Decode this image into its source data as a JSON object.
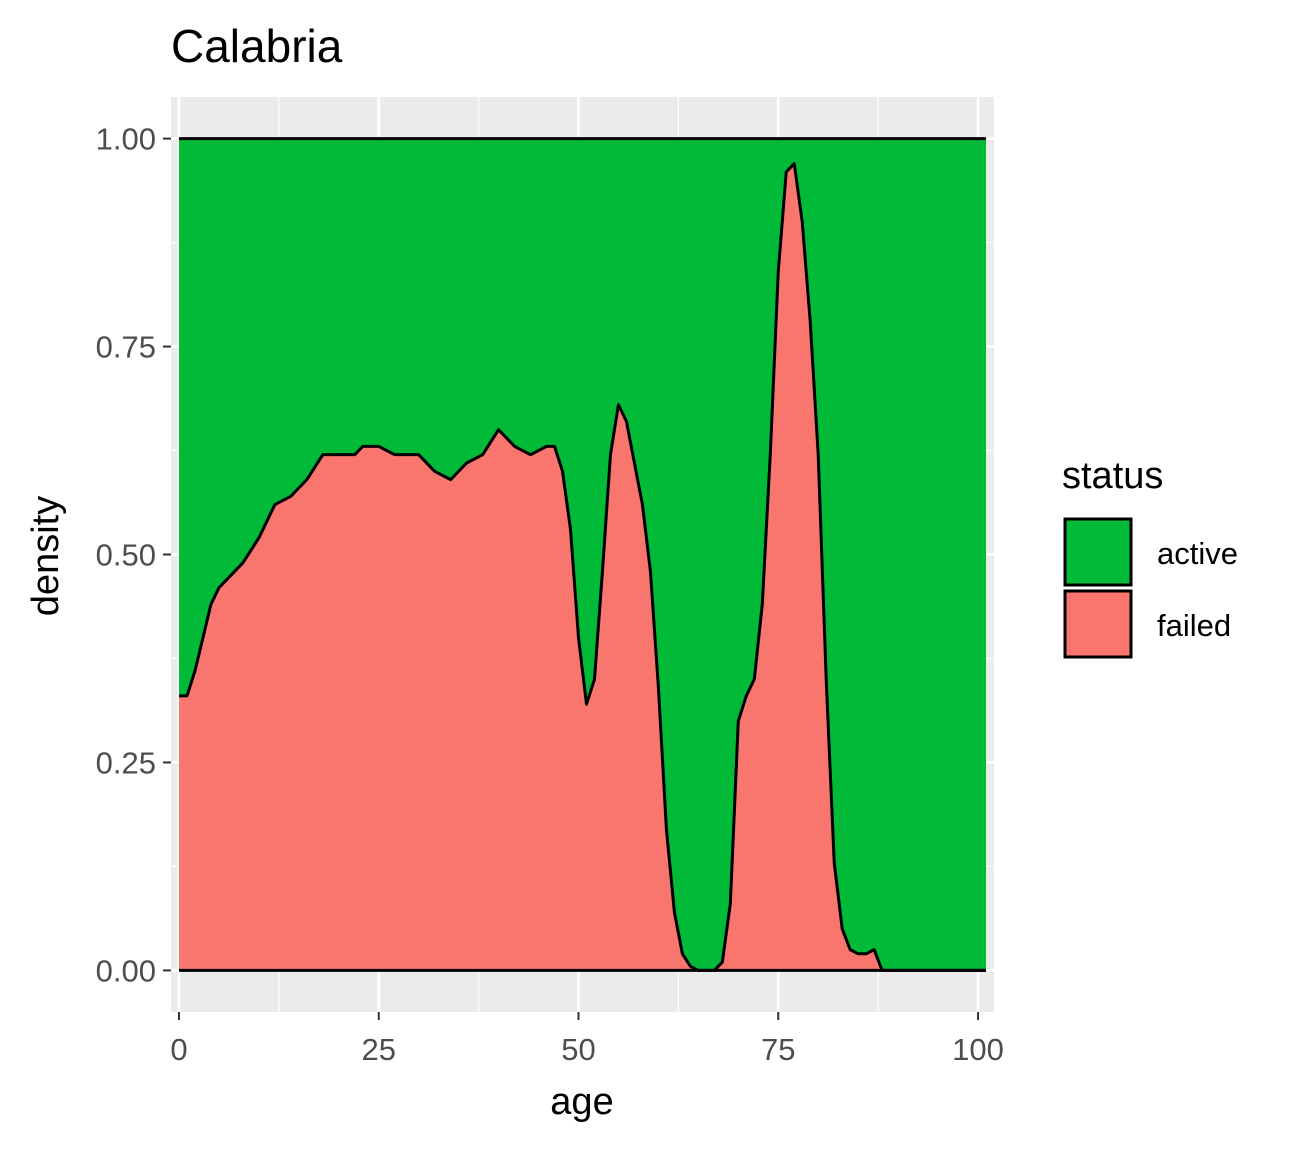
{
  "chart_data": {
    "type": "area",
    "position": "fill",
    "title": "Calabria",
    "xlabel": "age",
    "ylabel": "density",
    "xlim": [
      -1,
      102
    ],
    "ylim": [
      -0.05,
      1.05
    ],
    "x_ticks": [
      0,
      25,
      50,
      75,
      100
    ],
    "x_tick_labels": [
      "0",
      "25",
      "50",
      "75",
      "100"
    ],
    "y_ticks": [
      0,
      0.25,
      0.5,
      0.75,
      1
    ],
    "y_tick_labels": [
      "0.00",
      "0.25",
      "0.50",
      "0.75",
      "1.00"
    ],
    "grid": true,
    "legend": {
      "title": "status",
      "placement": "right",
      "entries": [
        {
          "label": "active",
          "color": "#00BA38"
        },
        {
          "label": "failed",
          "color": "#F8766D"
        }
      ]
    },
    "x": [
      0,
      1,
      2,
      3,
      4,
      5,
      6,
      8,
      10,
      12,
      14,
      16,
      18,
      19,
      20,
      22,
      23,
      25,
      27,
      30,
      32,
      34,
      36,
      38,
      40,
      41,
      42,
      44,
      46,
      47,
      48,
      49,
      50,
      51,
      52,
      53,
      54,
      55,
      56,
      57,
      58,
      59,
      60,
      61,
      62,
      63,
      64,
      65,
      66,
      67,
      68,
      69,
      70,
      71,
      72,
      73,
      74,
      75,
      76,
      77,
      78,
      79,
      80,
      81,
      82,
      83,
      84,
      85,
      86,
      87,
      88,
      90,
      95,
      101
    ],
    "series": [
      {
        "name": "failed",
        "values": [
          0.33,
          0.33,
          0.36,
          0.4,
          0.44,
          0.46,
          0.47,
          0.49,
          0.52,
          0.56,
          0.57,
          0.59,
          0.62,
          0.62,
          0.62,
          0.62,
          0.63,
          0.63,
          0.62,
          0.62,
          0.6,
          0.59,
          0.61,
          0.62,
          0.65,
          0.64,
          0.63,
          0.62,
          0.63,
          0.63,
          0.6,
          0.53,
          0.4,
          0.32,
          0.35,
          0.48,
          0.62,
          0.68,
          0.66,
          0.61,
          0.56,
          0.48,
          0.34,
          0.17,
          0.07,
          0.02,
          0.005,
          0.0,
          0.0,
          0.0,
          0.01,
          0.08,
          0.3,
          0.33,
          0.35,
          0.44,
          0.62,
          0.84,
          0.96,
          0.97,
          0.9,
          0.78,
          0.62,
          0.35,
          0.13,
          0.05,
          0.025,
          0.02,
          0.02,
          0.025,
          0.0,
          0.0,
          0.0,
          0.0
        ]
      },
      {
        "name": "active",
        "values": [
          0.67,
          0.67,
          0.64,
          0.6,
          0.56,
          0.54,
          0.53,
          0.51,
          0.48,
          0.44,
          0.43,
          0.41,
          0.38,
          0.38,
          0.38,
          0.38,
          0.37,
          0.37,
          0.38,
          0.38,
          0.4,
          0.41,
          0.39,
          0.38,
          0.35,
          0.36,
          0.37,
          0.38,
          0.37,
          0.37,
          0.4,
          0.47,
          0.6,
          0.68,
          0.65,
          0.52,
          0.38,
          0.32,
          0.34,
          0.39,
          0.44,
          0.52,
          0.66,
          0.83,
          0.93,
          0.98,
          0.995,
          1.0,
          1.0,
          1.0,
          0.99,
          0.92,
          0.7,
          0.67,
          0.65,
          0.56,
          0.38,
          0.16,
          0.04,
          0.03,
          0.1,
          0.22,
          0.38,
          0.65,
          0.87,
          0.95,
          0.975,
          0.98,
          0.98,
          0.975,
          1.0,
          1.0,
          1.0,
          1.0
        ]
      }
    ]
  }
}
